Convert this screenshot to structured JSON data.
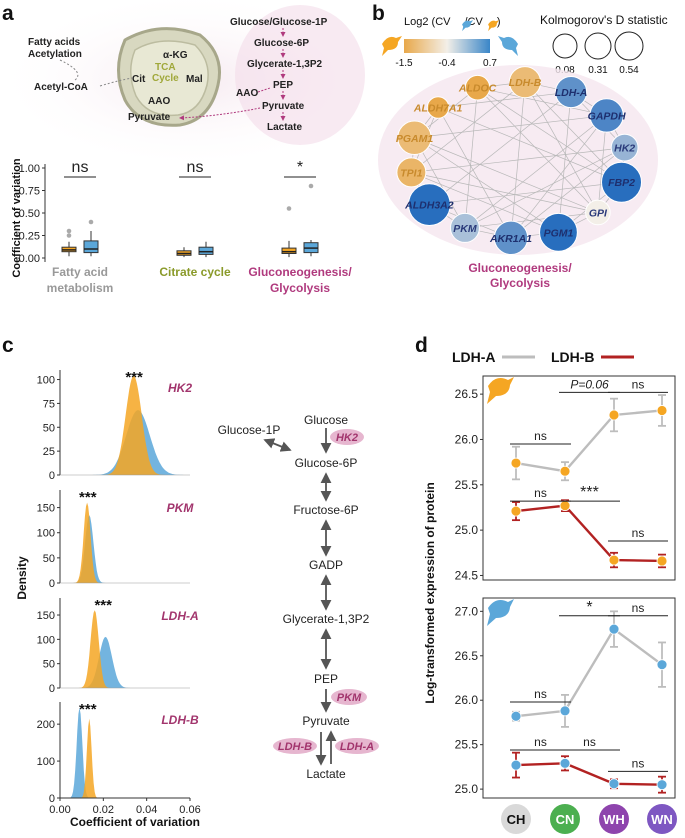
{
  "panel_labels": {
    "a": "a",
    "b": "b",
    "c": "c",
    "d": "d"
  },
  "colors": {
    "orange": "#f5a623",
    "blue": "#5ba7d9",
    "magenta": "#b03a7e",
    "olive": "#8a9a2a",
    "grey": "#999999",
    "red": "#b22222",
    "lightgrey": "#bdbdbd"
  },
  "panel_a": {
    "metabolism": {
      "fatty_label_1": "Fatty acids",
      "fatty_label_2": "Acetylation",
      "acetyl": "Acetyl-CoA",
      "akg": "α-KG",
      "cit": "Cit",
      "mal": "Mal",
      "aao_inner": "AAO",
      "pyruvate": "Pyruvate",
      "tca1": "TCA",
      "tca2": "Cycle",
      "glyco": [
        "Glucose/Glucose-1P",
        "Glucose-6P",
        "Glycerate-1,3P2",
        "PEP",
        "Pyruvate",
        "Lactate"
      ],
      "aao_outer": "AAO"
    },
    "chart_data": {
      "type": "boxplot",
      "ylabel": "Coefficient of variation",
      "ylim": [
        0,
        1
      ],
      "yticks": [
        "0.00",
        "0.25",
        "0.50",
        "0.75",
        "1.00"
      ],
      "groups": [
        {
          "name": "Fatty acid metabolism",
          "label1": "Fatty acid",
          "label2": "metabolism",
          "sig": "ns",
          "orange": {
            "q1": 0.07,
            "median": 0.09,
            "q3": 0.12,
            "wlo": 0.02,
            "whi": 0.18,
            "outliers": [
              0.25,
              0.3
            ]
          },
          "blue": {
            "q1": 0.06,
            "median": 0.1,
            "q3": 0.19,
            "wlo": 0.02,
            "whi": 0.3,
            "outliers": [
              0.4
            ]
          }
        },
        {
          "name": "Citrate cycle",
          "label1": "Citrate cycle",
          "label2": "",
          "sig": "ns",
          "orange": {
            "q1": 0.03,
            "median": 0.05,
            "q3": 0.08,
            "wlo": 0.01,
            "whi": 0.12,
            "outliers": []
          },
          "blue": {
            "q1": 0.04,
            "median": 0.07,
            "q3": 0.12,
            "wlo": 0.01,
            "whi": 0.18,
            "outliers": []
          }
        },
        {
          "name": "Gluconeogenesis/Glycolysis",
          "label1": "Gluconeogenesis/",
          "label2": "Glycolysis",
          "sig": "*",
          "orange": {
            "q1": 0.05,
            "median": 0.07,
            "q3": 0.11,
            "wlo": 0.01,
            "whi": 0.19,
            "outliers": [
              0.55
            ]
          },
          "blue": {
            "q1": 0.06,
            "median": 0.11,
            "q3": 0.17,
            "wlo": 0.02,
            "whi": 0.2,
            "outliers": [
              0.8
            ]
          }
        }
      ]
    }
  },
  "panel_b": {
    "legend_title": "Log2 (CV",
    "legend_title_mid": "/CV",
    "legend_title_end": ")",
    "color_ticks": [
      "-1.5",
      "-0.4",
      "0.7"
    ],
    "size_title": "Kolmogorov's D statistic",
    "size_ticks": [
      "0.08",
      "0.31",
      "0.54"
    ],
    "caption1": "Gluconeogenesis/",
    "caption2": "Glycolysis",
    "nodes": [
      {
        "label": "ALDOC",
        "value": -1.5,
        "d": 0.15
      },
      {
        "label": "LDH-B",
        "value": -1.2,
        "d": 0.3
      },
      {
        "label": "LDH-A",
        "value": 0.4,
        "d": 0.3
      },
      {
        "label": "GAPDH",
        "value": 0.5,
        "d": 0.35
      },
      {
        "label": "HK2",
        "value": 0.1,
        "d": 0.2
      },
      {
        "label": "FBP2",
        "value": 0.7,
        "d": 0.5
      },
      {
        "label": "GPI",
        "value": -0.4,
        "d": 0.15
      },
      {
        "label": "PGM1",
        "value": 0.7,
        "d": 0.45
      },
      {
        "label": "AKR1A1",
        "value": 0.4,
        "d": 0.35
      },
      {
        "label": "PKM",
        "value": 0.0,
        "d": 0.25
      },
      {
        "label": "ALDH3A2",
        "value": 0.7,
        "d": 0.54
      },
      {
        "label": "TPI1",
        "value": -1.3,
        "d": 0.25
      },
      {
        "label": "PGAM1",
        "value": -1.2,
        "d": 0.35
      },
      {
        "label": "ALDH7A1",
        "value": -1.5,
        "d": 0.08
      }
    ]
  },
  "panel_c": {
    "chart_data": {
      "type": "density",
      "xlabel": "Coefficient of variation",
      "ylabel": "Density",
      "xlim": [
        0,
        0.06
      ],
      "xticks": [
        "0.00",
        "0.02",
        "0.04",
        "0.06"
      ],
      "panels": [
        {
          "gene": "HK2",
          "sig": "***",
          "yticks": [
            "0",
            "25",
            "50",
            "75",
            "100"
          ],
          "ymax": 110,
          "orange": {
            "mean": 0.034,
            "sd": 0.0037,
            "peak": 104
          },
          "blue": {
            "mean": 0.036,
            "sd": 0.0055,
            "peak": 68
          }
        },
        {
          "gene": "PKM",
          "sig": "***",
          "yticks": [
            "0",
            "50",
            "100",
            "150"
          ],
          "ymax": 185,
          "orange": {
            "mean": 0.0125,
            "sd": 0.0016,
            "peak": 160
          },
          "blue": {
            "mean": 0.0135,
            "sd": 0.0019,
            "peak": 135
          }
        },
        {
          "gene": "LDH-A",
          "sig": "***",
          "yticks": [
            "0",
            "50",
            "100",
            "150"
          ],
          "ymax": 185,
          "orange": {
            "mean": 0.016,
            "sd": 0.0019,
            "peak": 160
          },
          "blue": {
            "mean": 0.021,
            "sd": 0.003,
            "peak": 105
          }
        },
        {
          "gene": "LDH-B",
          "sig": "***",
          "yticks": [
            "0",
            "100",
            "200"
          ],
          "ymax": 260,
          "orange": {
            "mean": 0.0135,
            "sd": 0.0011,
            "peak": 215
          },
          "blue": {
            "mean": 0.009,
            "sd": 0.0013,
            "peak": 245
          }
        }
      ]
    },
    "pathway": {
      "glucose": "Glucose",
      "g1p": "Glucose-1P",
      "hk2": "HK2",
      "g6p": "Glucose-6P",
      "f6p": "Fructose-6P",
      "gadp": "GADP",
      "g13": "Glycerate-1,3P2",
      "pep": "PEP",
      "pkm": "PKM",
      "pyruvate": "Pyruvate",
      "ldhb": "LDH-B",
      "ldha": "LDH-A",
      "lactate": "Lactate"
    }
  },
  "panel_d": {
    "legend": {
      "ldha": "LDH-A",
      "ldhb": "LDH-B"
    },
    "ylabel": "Log-transformed expression of protein",
    "categories": [
      "CH",
      "CN",
      "WH",
      "WN"
    ],
    "category_colors": [
      "#d9d9d9",
      "#4caf50",
      "#8e44ad",
      "#7e57c2"
    ],
    "chart_data": {
      "type": "line",
      "top": {
        "yticks": [
          "24.5",
          "25.0",
          "25.5",
          "26.0",
          "26.5"
        ],
        "ylim": [
          24.45,
          26.7
        ],
        "ldha": {
          "mean": [
            25.74,
            25.65,
            26.27,
            26.32
          ],
          "err": [
            0.18,
            0.1,
            0.18,
            0.17
          ]
        },
        "ldhb": {
          "mean": [
            25.21,
            25.27,
            24.67,
            24.66
          ],
          "err": [
            0.1,
            0.06,
            0.08,
            0.07
          ]
        },
        "annotations": [
          {
            "text": "ns",
            "from": 0,
            "to": 1,
            "y": 25.95
          },
          {
            "text": "P=0.06",
            "from": 1,
            "to": 2,
            "y": 26.52
          },
          {
            "text": "ns",
            "from": 2,
            "to": 3,
            "y": 26.52
          },
          {
            "text": "ns",
            "from": 0,
            "to": 1,
            "y": 25.32
          },
          {
            "text": "***",
            "from": 1,
            "to": 2,
            "y": 25.32
          },
          {
            "text": "ns",
            "from": 2,
            "to": 3,
            "y": 24.88
          }
        ]
      },
      "bottom": {
        "yticks": [
          "25.0",
          "25.5",
          "26.0",
          "26.5",
          "27.0"
        ],
        "ylim": [
          24.9,
          27.15
        ],
        "ldha": {
          "mean": [
            25.82,
            25.88,
            26.8,
            26.4
          ],
          "err": [
            0.05,
            0.18,
            0.2,
            0.25
          ]
        },
        "ldhb": {
          "mean": [
            25.27,
            25.29,
            25.06,
            25.05
          ],
          "err": [
            0.14,
            0.08,
            0.05,
            0.09
          ]
        },
        "annotations": [
          {
            "text": "*",
            "from": 1,
            "to": 2,
            "y": 26.95
          },
          {
            "text": "ns",
            "from": 2,
            "to": 3,
            "y": 26.95
          },
          {
            "text": "ns",
            "from": 0,
            "to": 1,
            "y": 25.98
          },
          {
            "text": "ns",
            "from": 0,
            "to": 1,
            "y": 25.44
          },
          {
            "text": "ns",
            "from": 1,
            "to": 2,
            "y": 25.44
          },
          {
            "text": "ns",
            "from": 2,
            "to": 3,
            "y": 25.2
          }
        ]
      }
    }
  }
}
